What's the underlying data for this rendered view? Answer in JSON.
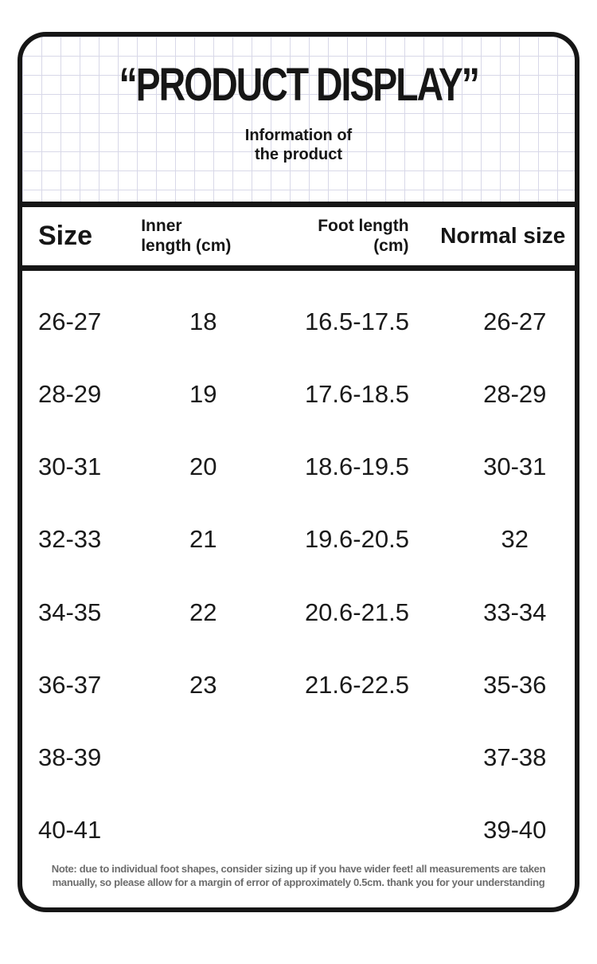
{
  "page": {
    "title": "“PRODUCT DISPLAY”",
    "subtitle": "Information of\nthe product"
  },
  "size_table": {
    "headers": {
      "size": "Size",
      "inner_length": "Inner\nlength (cm)",
      "foot_length": "Foot length\n(cm)",
      "normal_size": "Normal size"
    },
    "rows": [
      {
        "size": "26-27",
        "inner_length_cm": "18",
        "foot_length_cm": "16.5-17.5",
        "normal_size": "26-27"
      },
      {
        "size": "28-29",
        "inner_length_cm": "19",
        "foot_length_cm": "17.6-18.5",
        "normal_size": "28-29"
      },
      {
        "size": "30-31",
        "inner_length_cm": "20",
        "foot_length_cm": "18.6-19.5",
        "normal_size": "30-31"
      },
      {
        "size": "32-33",
        "inner_length_cm": "21",
        "foot_length_cm": "19.6-20.5",
        "normal_size": "32"
      },
      {
        "size": "34-35",
        "inner_length_cm": "22",
        "foot_length_cm": "20.6-21.5",
        "normal_size": "33-34"
      },
      {
        "size": "36-37",
        "inner_length_cm": "23",
        "foot_length_cm": "21.6-22.5",
        "normal_size": "35-36"
      },
      {
        "size": "38-39",
        "inner_length_cm": "",
        "foot_length_cm": "",
        "normal_size": "37-38"
      },
      {
        "size": "40-41",
        "inner_length_cm": "",
        "foot_length_cm": "",
        "normal_size": "39-40"
      }
    ]
  },
  "note": "Note: due to individual foot shapes, consider sizing up if you have wider feet! all measurements are taken\nmanually, so please allow for a margin of error of approximately 0.5cm. thank you for your understanding",
  "colors": {
    "ink": "#161616",
    "note_gray": "#6d6d6d",
    "grid_line": "#d8d8e8",
    "background": "#ffffff"
  }
}
